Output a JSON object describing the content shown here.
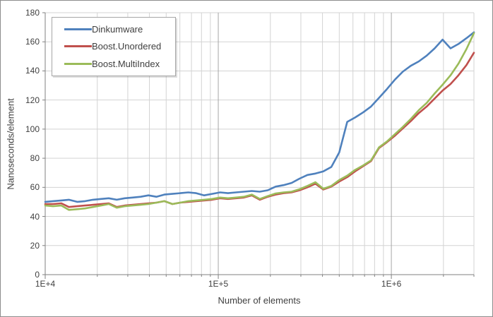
{
  "colors": {
    "chart_border": "#8c8c8c",
    "axis": "#808080",
    "gridline_minor": "#d3d3d3",
    "gridline_major": "#a6a6a6",
    "text": "#404040",
    "legend_border": "#a6a6a6"
  },
  "chart_data": {
    "type": "line",
    "title": "",
    "xlabel": "Number of elements",
    "ylabel": "Nanoseconds/element",
    "x_scale": "log",
    "xlim": [
      10000,
      3000000
    ],
    "ylim": [
      0,
      180
    ],
    "grid": "both",
    "legend_position": "top-left-inside",
    "y_ticks": [
      0,
      20,
      40,
      60,
      80,
      100,
      120,
      140,
      160,
      180
    ],
    "x_major_ticks": [
      {
        "value": 10000,
        "label": "1E+4"
      },
      {
        "value": 100000,
        "label": "1E+5"
      },
      {
        "value": 1000000,
        "label": "1E+6"
      }
    ],
    "x": [
      10000,
      11100,
      12400,
      13700,
      15300,
      17000,
      18900,
      21000,
      23300,
      25900,
      28800,
      32000,
      35600,
      39500,
      43900,
      48800,
      54300,
      60300,
      67100,
      74500,
      82900,
      92100,
      102400,
      113800,
      126500,
      140600,
      156300,
      173700,
      193100,
      214600,
      238500,
      265100,
      294700,
      327600,
      364100,
      404700,
      449800,
      500000,
      555800,
      617800,
      686700,
      763300,
      848400,
      943000,
      1048200,
      1165100,
      1295000,
      1439500,
      1600000,
      1778500,
      1976900,
      2197400,
      2442400,
      2714800,
      3000000
    ],
    "series": [
      {
        "name": "Dinkumware",
        "color": "#4F81BD",
        "values": [
          50,
          50.5,
          51,
          51.5,
          50,
          50.5,
          51.5,
          52,
          52.5,
          51.5,
          52.5,
          53,
          53.5,
          54.5,
          53.5,
          55,
          55.5,
          56,
          56.5,
          56,
          54.5,
          55.5,
          56.5,
          56,
          56.5,
          57,
          57.5,
          57,
          58,
          60.5,
          61.5,
          63,
          66,
          68.5,
          69.5,
          71,
          74,
          84,
          105,
          108,
          111.5,
          115.5,
          121.5,
          127.5,
          134,
          139.5,
          143.5,
          146.5,
          150.5,
          155.5,
          161.5,
          155.5,
          158.5,
          162.5,
          166.5
        ]
      },
      {
        "name": "Boost.Unordered",
        "color": "#C0504D",
        "values": [
          48.5,
          48.5,
          49,
          46.5,
          47,
          47.5,
          48,
          48.5,
          49,
          46.5,
          47.5,
          48,
          48.5,
          49,
          49.5,
          50.5,
          48.5,
          49.5,
          50,
          50.5,
          51,
          51.5,
          52.5,
          52,
          52.5,
          53,
          54.5,
          51.5,
          53.5,
          55,
          56,
          56.5,
          58,
          60,
          62.5,
          58.5,
          60.5,
          64,
          67,
          71,
          74.5,
          78,
          87,
          91,
          95.5,
          100.5,
          105.5,
          111,
          115.5,
          121,
          126.5,
          131,
          137,
          144,
          152.5
        ]
      },
      {
        "name": "Boost.MultiIndex",
        "color": "#9BBB59",
        "values": [
          47.5,
          47,
          47.5,
          44.5,
          45,
          45.5,
          46.5,
          47.5,
          48.5,
          46,
          47,
          47.5,
          48,
          48.5,
          49.5,
          50.5,
          48.5,
          49.5,
          50.5,
          51,
          51.5,
          52,
          53,
          52.5,
          53,
          53.5,
          55,
          52,
          54,
          55.8,
          56.5,
          57,
          58.7,
          61,
          63.5,
          59,
          61,
          65,
          68,
          72,
          75,
          78.5,
          87.5,
          91.5,
          96.5,
          101.5,
          107,
          113,
          118,
          124.5,
          130.5,
          137,
          145,
          155,
          166
        ]
      }
    ]
  }
}
